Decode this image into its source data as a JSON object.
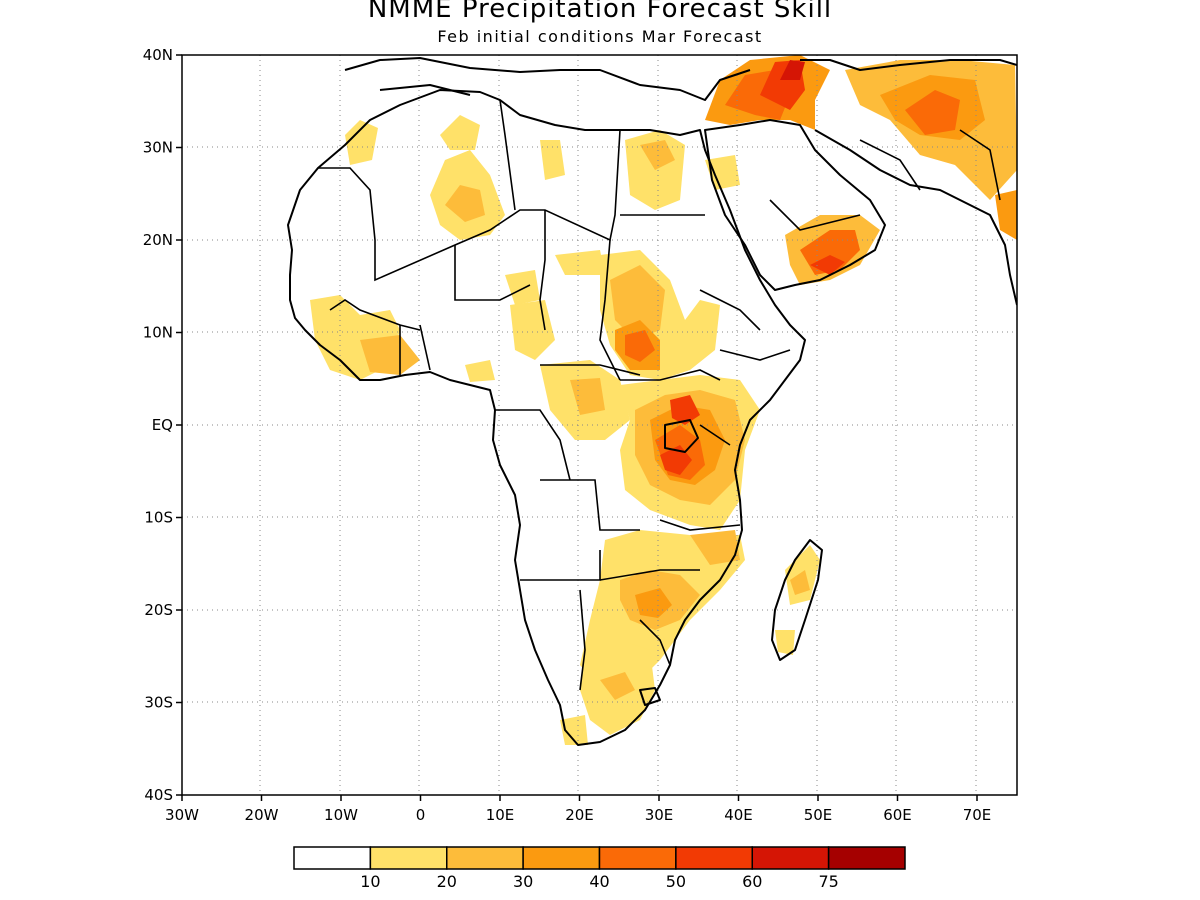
{
  "title": "NMME Precipitation Forecast Skill",
  "subtitle": "Feb initial conditions  Mar Forecast",
  "y_ticks": [
    "40N",
    "30N",
    "20N",
    "10N",
    "EQ",
    "10S",
    "20S",
    "30S",
    "40S"
  ],
  "x_ticks": [
    "30W",
    "20W",
    "10W",
    "0",
    "10E",
    "20E",
    "30E",
    "40E",
    "50E",
    "60E",
    "70E"
  ],
  "legend": {
    "labels": [
      "10",
      "20",
      "30",
      "40",
      "50",
      "60",
      "75"
    ],
    "colors": [
      "#ffffff",
      "#ffe169",
      "#fdbc3a",
      "#fb9a10",
      "#fa6a07",
      "#f23a04",
      "#d51505",
      "#a50000"
    ]
  },
  "map": {
    "region": "Africa and surrounding regions",
    "lon_range": [
      -30,
      75
    ],
    "lat_range": [
      -40,
      40
    ],
    "grid": "dotted"
  }
}
